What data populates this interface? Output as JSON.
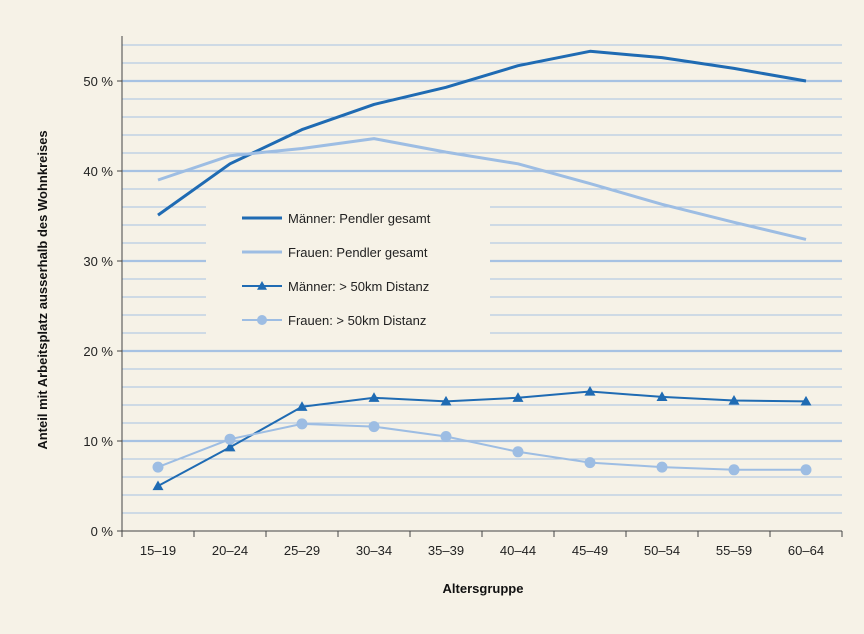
{
  "chart_data": {
    "type": "line",
    "title": "",
    "xlabel": "Altersgruppe",
    "ylabel": "Anteil mit Arbeitsplatz ausserhalb des Wohnkreises",
    "categories": [
      "15–19",
      "20–24",
      "25–29",
      "30–34",
      "35–39",
      "40–44",
      "45–49",
      "50–54",
      "55–59",
      "60–64"
    ],
    "ylim": [
      0,
      55
    ],
    "yticks": [
      0,
      10,
      20,
      30,
      40,
      50
    ],
    "ytick_labels": [
      "0 %",
      "10 %",
      "20 %",
      "30 %",
      "40 %",
      "50 %"
    ],
    "grid": true,
    "legend_position": "center-left",
    "series": [
      {
        "name": "Männer: Pendler gesamt",
        "values": [
          35.1,
          40.8,
          44.6,
          47.4,
          49.3,
          51.7,
          53.3,
          52.6,
          51.4,
          50.0
        ],
        "color": "#1f6bb3",
        "marker": "none",
        "width": 3
      },
      {
        "name": "Frauen: Pendler gesamt",
        "values": [
          39.0,
          41.7,
          42.5,
          43.6,
          42.1,
          40.8,
          38.6,
          36.3,
          34.3,
          32.4
        ],
        "color": "#9dbde3",
        "marker": "none",
        "width": 3
      },
      {
        "name": "Männer: > 50km Distanz",
        "values": [
          5.0,
          9.3,
          13.8,
          14.8,
          14.4,
          14.8,
          15.5,
          14.9,
          14.5,
          14.4
        ],
        "color": "#1f6bb3",
        "marker": "triangle",
        "width": 2
      },
      {
        "name": "Frauen: > 50km Distanz",
        "values": [
          7.1,
          10.2,
          11.9,
          11.6,
          10.5,
          8.8,
          7.6,
          7.1,
          6.8,
          6.8
        ],
        "color": "#9dbde3",
        "marker": "circle",
        "width": 2
      }
    ]
  }
}
